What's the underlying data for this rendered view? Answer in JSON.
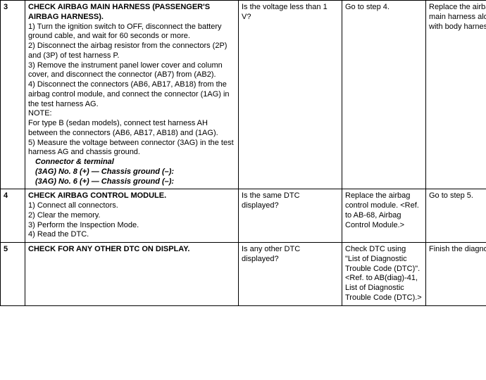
{
  "rows": [
    {
      "step": "3",
      "title": "CHECK AIRBAG MAIN HARNESS (PASSENGER'S AIRBAG HARNESS).",
      "lines": [
        "1)  Turn the ignition switch to OFF, disconnect the battery ground cable, and wait for 60 seconds or more.",
        "2)  Disconnect the airbag resistor from the connectors (2P) and (3P) of test harness P.",
        "3)  Remove the instrument panel lower cover and column cover, and disconnect the connector (AB7) from (AB2).",
        "4)  Disconnect the connectors (AB6, AB17, AB18) from the airbag control module, and connect the connector (1AG) in the test harness AG.",
        "NOTE:",
        "For type B (sedan models), connect test harness AH between the connectors (AB6, AB17, AB18) and (1AG).",
        "5)  Measure the voltage between connector (3AG) in the test harness AG and chassis ground."
      ],
      "conn_heading": "Connector & terminal",
      "conn1": "(3AG) No. 8 (+) — Chassis ground (–):",
      "conn2": "(3AG) No. 6 (+) — Chassis ground (–):",
      "check": "Is the voltage less than 1 V?",
      "yes": "Go to step 4.",
      "no": "Replace the airbag main harness along with body harness."
    },
    {
      "step": "4",
      "title": "CHECK AIRBAG CONTROL MODULE.",
      "lines": [
        "1)  Connect all connectors.",
        "2)  Clear the memory.",
        "3)  Perform the Inspection Mode.",
        "4)  Read the DTC."
      ],
      "check": "Is the same DTC displayed?",
      "yes": "Replace the airbag control module. <Ref. to AB-68, Airbag Control Module.>",
      "no": "Go to step 5."
    },
    {
      "step": "5",
      "title": "CHECK FOR ANY OTHER DTC ON DISPLAY.",
      "lines": [],
      "check": "Is any other DTC displayed?",
      "yes": "Check DTC using \"List of Diagnostic Trouble Code (DTC)\". <Ref. to AB(diag)-41, List of Diagnostic Trouble Code (DTC).>",
      "no": "Finish the diagnosis."
    }
  ]
}
